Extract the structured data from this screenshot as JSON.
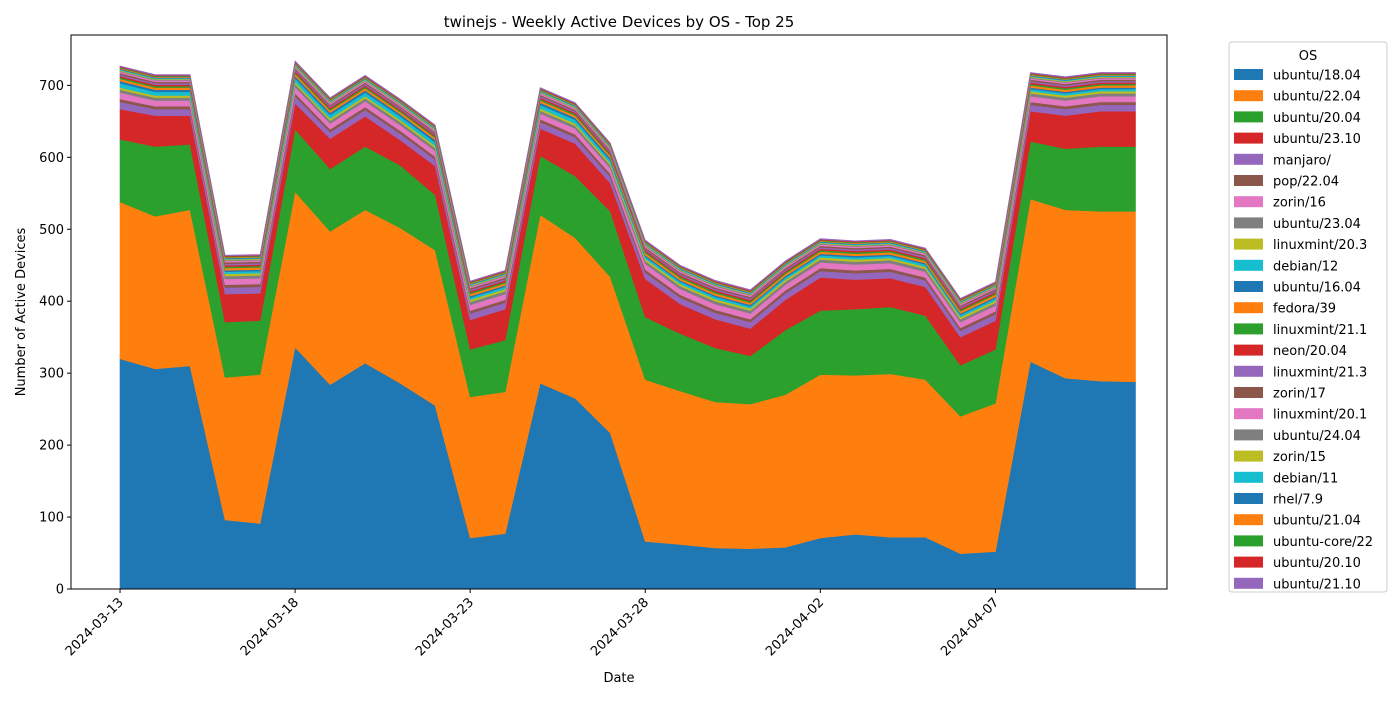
{
  "chart_data": {
    "type": "area",
    "stacked": true,
    "title": "twinejs - Weekly Active Devices by OS - Top 25",
    "xlabel": "Date",
    "ylabel": "Number of Active Devices",
    "x": [
      "2024-03-13",
      "2024-03-14",
      "2024-03-15",
      "2024-03-16",
      "2024-03-17",
      "2024-03-18",
      "2024-03-19",
      "2024-03-20",
      "2024-03-21",
      "2024-03-22",
      "2024-03-23",
      "2024-03-24",
      "2024-03-25",
      "2024-03-26",
      "2024-03-27",
      "2024-03-28",
      "2024-03-29",
      "2024-03-30",
      "2024-03-31",
      "2024-04-01",
      "2024-04-02",
      "2024-04-03",
      "2024-04-04",
      "2024-04-05",
      "2024-04-06",
      "2024-04-07",
      "2024-04-08",
      "2024-04-09",
      "2024-04-10",
      "2024-04-11"
    ],
    "xlim": [
      "2024-03-11.6",
      "2024-04-11.9"
    ],
    "ylim": [
      0,
      770
    ],
    "xticks": [
      "2024-03-13",
      "2024-03-18",
      "2024-03-23",
      "2024-03-28",
      "2024-04-02",
      "2024-04-07"
    ],
    "yticks": [
      0,
      100,
      200,
      300,
      400,
      500,
      600,
      700
    ],
    "legend_title": "OS",
    "legend_position": "outside-right",
    "grid": false,
    "series": [
      {
        "name": "ubuntu/18.04",
        "color": "#1f77b4",
        "values": [
          320,
          306,
          310,
          96,
          91,
          336,
          284,
          314,
          286,
          255,
          71,
          77,
          286,
          265,
          217,
          66,
          62,
          57,
          56,
          58,
          71,
          76,
          72,
          72,
          49,
          52,
          316,
          293,
          289,
          288
        ]
      },
      {
        "name": "ubuntu/22.04",
        "color": "#ff7f0e",
        "values": [
          218,
          212,
          217,
          198,
          207,
          216,
          213,
          213,
          216,
          216,
          196,
          197,
          234,
          223,
          217,
          225,
          213,
          203,
          201,
          212,
          227,
          221,
          227,
          219,
          191,
          206,
          226,
          234,
          236,
          237
        ]
      },
      {
        "name": "ubuntu/20.04",
        "color": "#2ca02c",
        "values": [
          87,
          97,
          91,
          77,
          75,
          87,
          87,
          88,
          87,
          77,
          66,
          72,
          82,
          86,
          91,
          87,
          80,
          75,
          67,
          90,
          89,
          92,
          93,
          89,
          71,
          75,
          80,
          85,
          90,
          90
        ]
      },
      {
        "name": "ubuntu/23.10",
        "color": "#d62728",
        "values": [
          42,
          43,
          40,
          39,
          38,
          36,
          42,
          42,
          35,
          40,
          41,
          43,
          38,
          45,
          39,
          53,
          41,
          40,
          38,
          42,
          46,
          41,
          40,
          40,
          39,
          40,
          42,
          46,
          49,
          49
        ]
      },
      {
        "name": "manjaro/",
        "color": "#9467bd",
        "values": [
          10,
          9,
          9,
          9,
          9,
          10,
          9,
          9,
          9,
          9,
          9,
          9,
          9,
          9,
          9,
          9,
          9,
          9,
          9,
          9,
          9,
          9,
          9,
          9,
          9,
          9,
          9,
          9,
          9,
          9
        ]
      },
      {
        "name": "pop/22.04",
        "color": "#8c564b",
        "values": [
          4,
          4,
          4,
          4,
          4,
          4,
          4,
          4,
          4,
          4,
          4,
          4,
          4,
          4,
          4,
          4,
          4,
          4,
          4,
          4,
          4,
          4,
          4,
          4,
          4,
          4,
          4,
          4,
          4,
          4
        ]
      },
      {
        "name": "zorin/16",
        "color": "#e377c2",
        "values": [
          9,
          8,
          8,
          8,
          8,
          9,
          8,
          8,
          8,
          8,
          8,
          8,
          8,
          8,
          8,
          8,
          8,
          8,
          8,
          8,
          8,
          8,
          8,
          8,
          8,
          8,
          8,
          8,
          8,
          8
        ]
      },
      {
        "name": "ubuntu/23.04",
        "color": "#7f7f7f",
        "values": [
          4,
          4,
          4,
          4,
          4,
          4,
          4,
          4,
          4,
          4,
          4,
          4,
          4,
          4,
          4,
          4,
          4,
          4,
          4,
          4,
          4,
          4,
          4,
          4,
          4,
          4,
          4,
          4,
          4,
          4
        ]
      },
      {
        "name": "linuxmint/20.3",
        "color": "#bcbd22",
        "values": [
          3,
          3,
          3,
          3,
          3,
          3,
          3,
          3,
          3,
          3,
          3,
          3,
          3,
          3,
          3,
          3,
          3,
          3,
          3,
          3,
          3,
          3,
          3,
          3,
          3,
          3,
          3,
          3,
          3,
          3
        ]
      },
      {
        "name": "debian/12",
        "color": "#17becf",
        "values": [
          6,
          5,
          5,
          3,
          3,
          5,
          5,
          5,
          5,
          5,
          3,
          3,
          5,
          5,
          4,
          3,
          3,
          3,
          3,
          3,
          3,
          3,
          3,
          3,
          3,
          3,
          3,
          3,
          3,
          3
        ]
      },
      {
        "name": "ubuntu/16.04",
        "color": "#1f77b4",
        "values": [
          3,
          3,
          3,
          2,
          2,
          3,
          3,
          3,
          3,
          3,
          2,
          2,
          3,
          3,
          3,
          2,
          2,
          2,
          2,
          2,
          2,
          2,
          2,
          2,
          2,
          2,
          2,
          2,
          2,
          2
        ]
      },
      {
        "name": "fedora/39",
        "color": "#ff7f0e",
        "values": [
          3,
          3,
          3,
          3,
          3,
          3,
          3,
          3,
          3,
          3,
          3,
          3,
          3,
          3,
          3,
          3,
          3,
          3,
          3,
          3,
          3,
          3,
          3,
          3,
          3,
          3,
          3,
          3,
          3,
          3
        ]
      },
      {
        "name": "linuxmint/21.1",
        "color": "#2ca02c",
        "values": [
          2,
          2,
          2,
          2,
          2,
          2,
          2,
          2,
          2,
          2,
          2,
          2,
          2,
          2,
          2,
          2,
          2,
          2,
          2,
          2,
          2,
          2,
          2,
          2,
          2,
          2,
          2,
          2,
          2,
          2
        ]
      },
      {
        "name": "neon/20.04",
        "color": "#d62728",
        "values": [
          2,
          2,
          2,
          2,
          2,
          2,
          2,
          2,
          2,
          2,
          2,
          2,
          2,
          2,
          2,
          2,
          2,
          2,
          2,
          2,
          2,
          2,
          2,
          2,
          2,
          2,
          2,
          2,
          2,
          2
        ]
      },
      {
        "name": "linuxmint/21.3",
        "color": "#9467bd",
        "values": [
          2,
          2,
          2,
          2,
          2,
          2,
          2,
          2,
          2,
          2,
          2,
          2,
          2,
          2,
          2,
          2,
          2,
          2,
          2,
          2,
          2,
          2,
          2,
          2,
          2,
          2,
          2,
          2,
          2,
          2
        ]
      },
      {
        "name": "zorin/17",
        "color": "#8c564b",
        "values": [
          2,
          2,
          2,
          2,
          2,
          2,
          2,
          2,
          2,
          2,
          2,
          2,
          2,
          2,
          2,
          2,
          2,
          2,
          2,
          2,
          2,
          2,
          2,
          2,
          2,
          2,
          2,
          2,
          2,
          2
        ]
      },
      {
        "name": "linuxmint/20.1",
        "color": "#e377c2",
        "values": [
          2,
          2,
          2,
          2,
          2,
          2,
          2,
          2,
          2,
          2,
          2,
          2,
          2,
          2,
          2,
          2,
          2,
          2,
          2,
          2,
          2,
          2,
          2,
          2,
          2,
          2,
          2,
          2,
          2,
          2
        ]
      },
      {
        "name": "ubuntu/24.04",
        "color": "#7f7f7f",
        "values": [
          1,
          1,
          1,
          1,
          1,
          1,
          1,
          1,
          1,
          1,
          1,
          1,
          1,
          1,
          1,
          1,
          1,
          1,
          1,
          1,
          1,
          1,
          1,
          1,
          1,
          1,
          1,
          1,
          1,
          1
        ]
      },
      {
        "name": "zorin/15",
        "color": "#bcbd22",
        "values": [
          1,
          1,
          1,
          1,
          1,
          1,
          1,
          1,
          1,
          1,
          1,
          1,
          1,
          1,
          1,
          1,
          1,
          1,
          1,
          1,
          1,
          1,
          1,
          1,
          1,
          1,
          1,
          1,
          1,
          1
        ]
      },
      {
        "name": "debian/11",
        "color": "#17becf",
        "values": [
          1,
          1,
          1,
          1,
          1,
          1,
          1,
          1,
          1,
          1,
          1,
          1,
          1,
          1,
          1,
          1,
          1,
          1,
          1,
          1,
          1,
          1,
          1,
          1,
          1,
          1,
          1,
          1,
          1,
          1
        ]
      },
      {
        "name": "rhel/7.9",
        "color": "#1f77b4",
        "values": [
          1,
          1,
          1,
          1,
          1,
          1,
          1,
          1,
          1,
          1,
          1,
          1,
          1,
          1,
          1,
          1,
          1,
          1,
          1,
          1,
          1,
          1,
          1,
          1,
          1,
          1,
          1,
          1,
          1,
          1
        ]
      },
      {
        "name": "ubuntu/21.04",
        "color": "#ff7f0e",
        "values": [
          1,
          1,
          1,
          1,
          1,
          1,
          1,
          1,
          1,
          1,
          1,
          1,
          1,
          1,
          1,
          1,
          1,
          1,
          1,
          1,
          1,
          1,
          1,
          1,
          1,
          1,
          1,
          1,
          1,
          1
        ]
      },
      {
        "name": "ubuntu-core/22",
        "color": "#2ca02c",
        "values": [
          1,
          1,
          1,
          1,
          1,
          1,
          1,
          1,
          1,
          1,
          1,
          1,
          1,
          1,
          1,
          1,
          1,
          1,
          1,
          1,
          1,
          1,
          1,
          1,
          1,
          1,
          1,
          1,
          1,
          1
        ]
      },
      {
        "name": "ubuntu/20.10",
        "color": "#d62728",
        "values": [
          1,
          1,
          1,
          1,
          1,
          1,
          1,
          1,
          1,
          1,
          1,
          1,
          1,
          1,
          1,
          1,
          1,
          1,
          1,
          1,
          1,
          1,
          1,
          1,
          1,
          1,
          1,
          1,
          1,
          1
        ]
      },
      {
        "name": "ubuntu/21.10",
        "color": "#9467bd",
        "values": [
          1,
          1,
          1,
          1,
          1,
          1,
          1,
          1,
          1,
          1,
          1,
          1,
          1,
          1,
          1,
          1,
          1,
          1,
          1,
          1,
          1,
          1,
          1,
          1,
          1,
          1,
          1,
          1,
          1,
          1
        ]
      }
    ]
  }
}
